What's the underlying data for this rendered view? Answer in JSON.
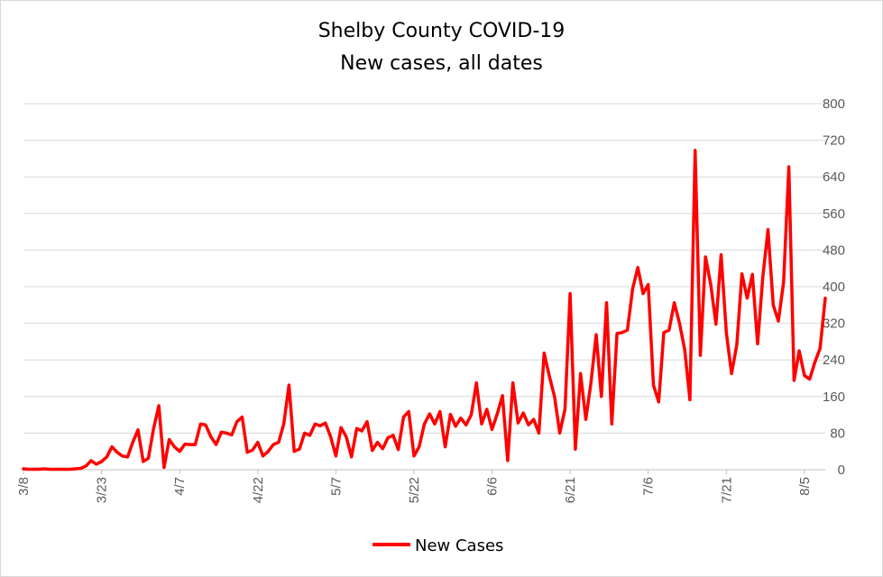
{
  "chart_data": {
    "type": "line",
    "title": "Shelby County COVID-19",
    "subtitle": "New cases, all dates",
    "xlabel": "",
    "ylabel": "",
    "ylim": [
      0,
      800
    ],
    "y_ticks": [
      "0",
      "80",
      "160",
      "240",
      "320",
      "400",
      "480",
      "560",
      "640",
      "720",
      "800"
    ],
    "y_axis_side": "right",
    "x_tick_labels": [
      "3/8",
      "3/23",
      "4/7",
      "4/22",
      "5/7",
      "5/22",
      "6/6",
      "6/21",
      "7/6",
      "7/21",
      "8/5"
    ],
    "x_tick_index_step": 15,
    "grid": true,
    "legend_position": "bottom",
    "color": "#ff0000",
    "series": [
      {
        "name": "New Cases",
        "values": [
          2,
          1,
          1,
          1,
          2,
          1,
          1,
          1,
          1,
          1,
          2,
          3,
          8,
          20,
          12,
          18,
          28,
          50,
          38,
          30,
          28,
          60,
          87,
          18,
          25,
          90,
          140,
          5,
          66,
          50,
          40,
          56,
          55,
          55,
          100,
          98,
          72,
          55,
          82,
          80,
          76,
          105,
          115,
          38,
          43,
          60,
          30,
          40,
          55,
          60,
          100,
          185,
          40,
          45,
          80,
          75,
          100,
          96,
          102,
          72,
          30,
          92,
          72,
          28,
          90,
          85,
          105,
          42,
          60,
          46,
          70,
          75,
          44,
          115,
          127,
          30,
          50,
          100,
          122,
          100,
          127,
          50,
          121,
          95,
          113,
          98,
          120,
          190,
          100,
          132,
          88,
          122,
          162,
          20,
          190,
          102,
          124,
          98,
          110,
          80,
          255,
          205,
          160,
          80,
          132,
          385,
          45,
          210,
          110,
          190,
          295,
          160,
          365,
          100,
          298,
          300,
          305,
          395,
          442,
          385,
          405,
          185,
          148,
          300,
          305,
          365,
          320,
          263,
          153,
          698,
          250,
          465,
          405,
          318,
          470,
          300,
          210,
          273,
          428,
          375,
          427,
          275,
          420,
          525,
          360,
          325,
          410,
          662,
          195,
          260,
          206,
          198,
          235,
          265,
          375
        ]
      }
    ]
  }
}
